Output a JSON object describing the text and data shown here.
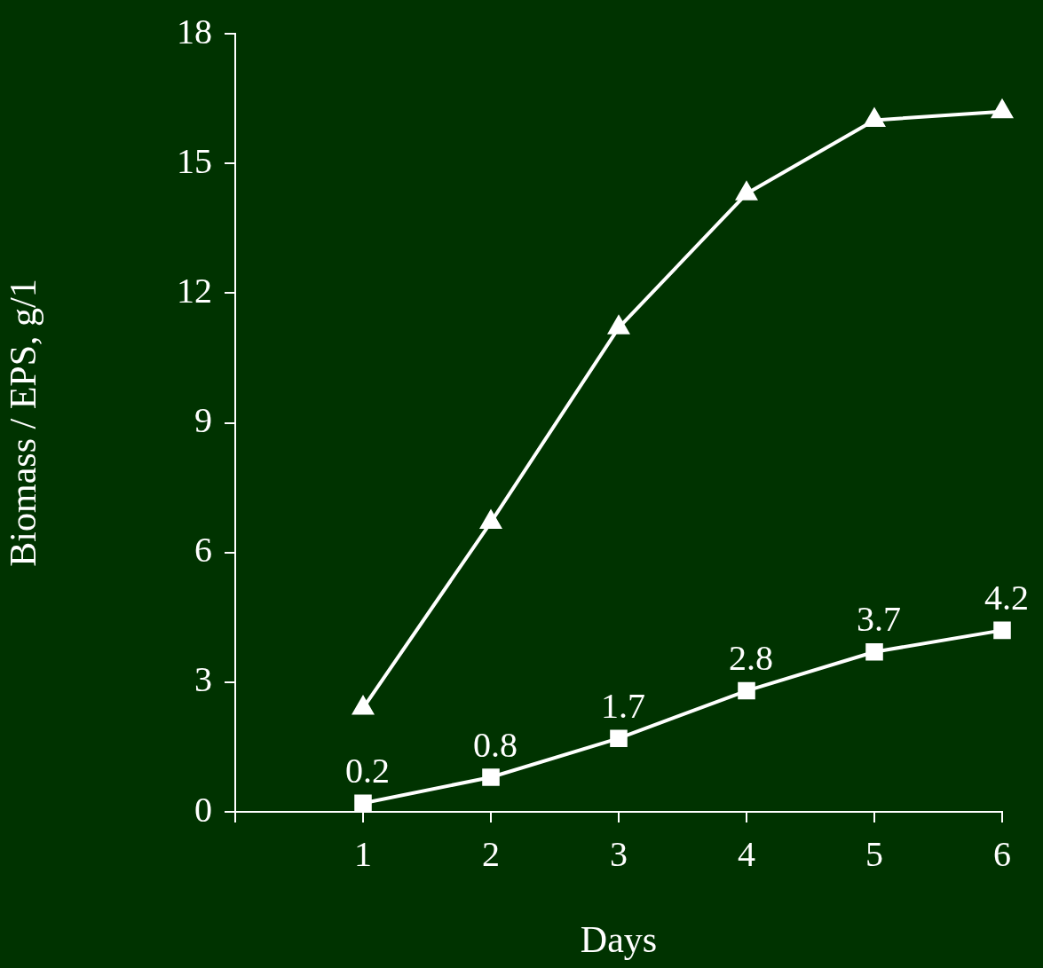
{
  "chart_data": {
    "type": "line",
    "xlabel": "Days",
    "ylabel": "Biomass / EPS, g/1",
    "x": [
      1,
      2,
      3,
      4,
      5,
      6
    ],
    "xlim": [
      0,
      6
    ],
    "xticks": [
      {
        "value": 0,
        "label": null
      },
      1,
      2,
      3,
      4,
      5,
      6
    ],
    "ylim": [
      0,
      18
    ],
    "yticks": [
      0,
      3,
      6,
      9,
      12,
      15,
      18
    ],
    "grid": false,
    "legend": false,
    "line_style": "solid",
    "series": [
      {
        "color": "#ffffff",
        "marker": "triangle",
        "values": [
          2.4,
          6.7,
          11.2,
          14.3,
          16.0,
          16.2
        ]
      },
      {
        "color": "#ffffff",
        "marker": "square",
        "values": [
          0.2,
          0.8,
          1.7,
          2.8,
          3.7,
          4.2
        ],
        "value_labels": [
          "0.2",
          "0.8",
          "1.7",
          "2.8",
          "3.7",
          "4.2"
        ]
      }
    ]
  }
}
